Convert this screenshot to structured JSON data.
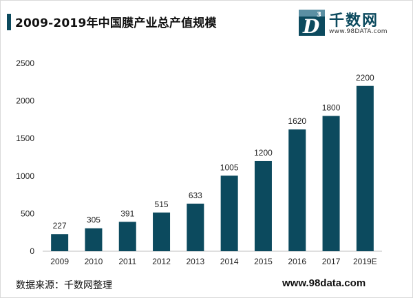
{
  "title": "2009-2019年中国膜产业总产值规模",
  "logo": {
    "name": "千数网",
    "url": "www.98DATA.com",
    "mark_letter": "D",
    "mark_sup": "3"
  },
  "source": "数据来源：千数网整理",
  "website": "www.98data.com",
  "colors": {
    "bar": "#0c4a5e",
    "accent": "#0c4a5e"
  },
  "chart_data": {
    "type": "bar",
    "categories": [
      "2009",
      "2010",
      "2011",
      "2012",
      "2013",
      "2014",
      "2015",
      "2016",
      "2017",
      "2019E"
    ],
    "values": [
      227,
      305,
      391,
      515,
      633,
      1005,
      1200,
      1620,
      1800,
      2200
    ],
    "title": "2009-2019年中国膜产业总产值规模",
    "ylim": [
      0,
      2500
    ],
    "yticks": [
      0,
      500,
      1000,
      1500,
      2000,
      2500
    ],
    "grid": false,
    "legend": "none"
  }
}
